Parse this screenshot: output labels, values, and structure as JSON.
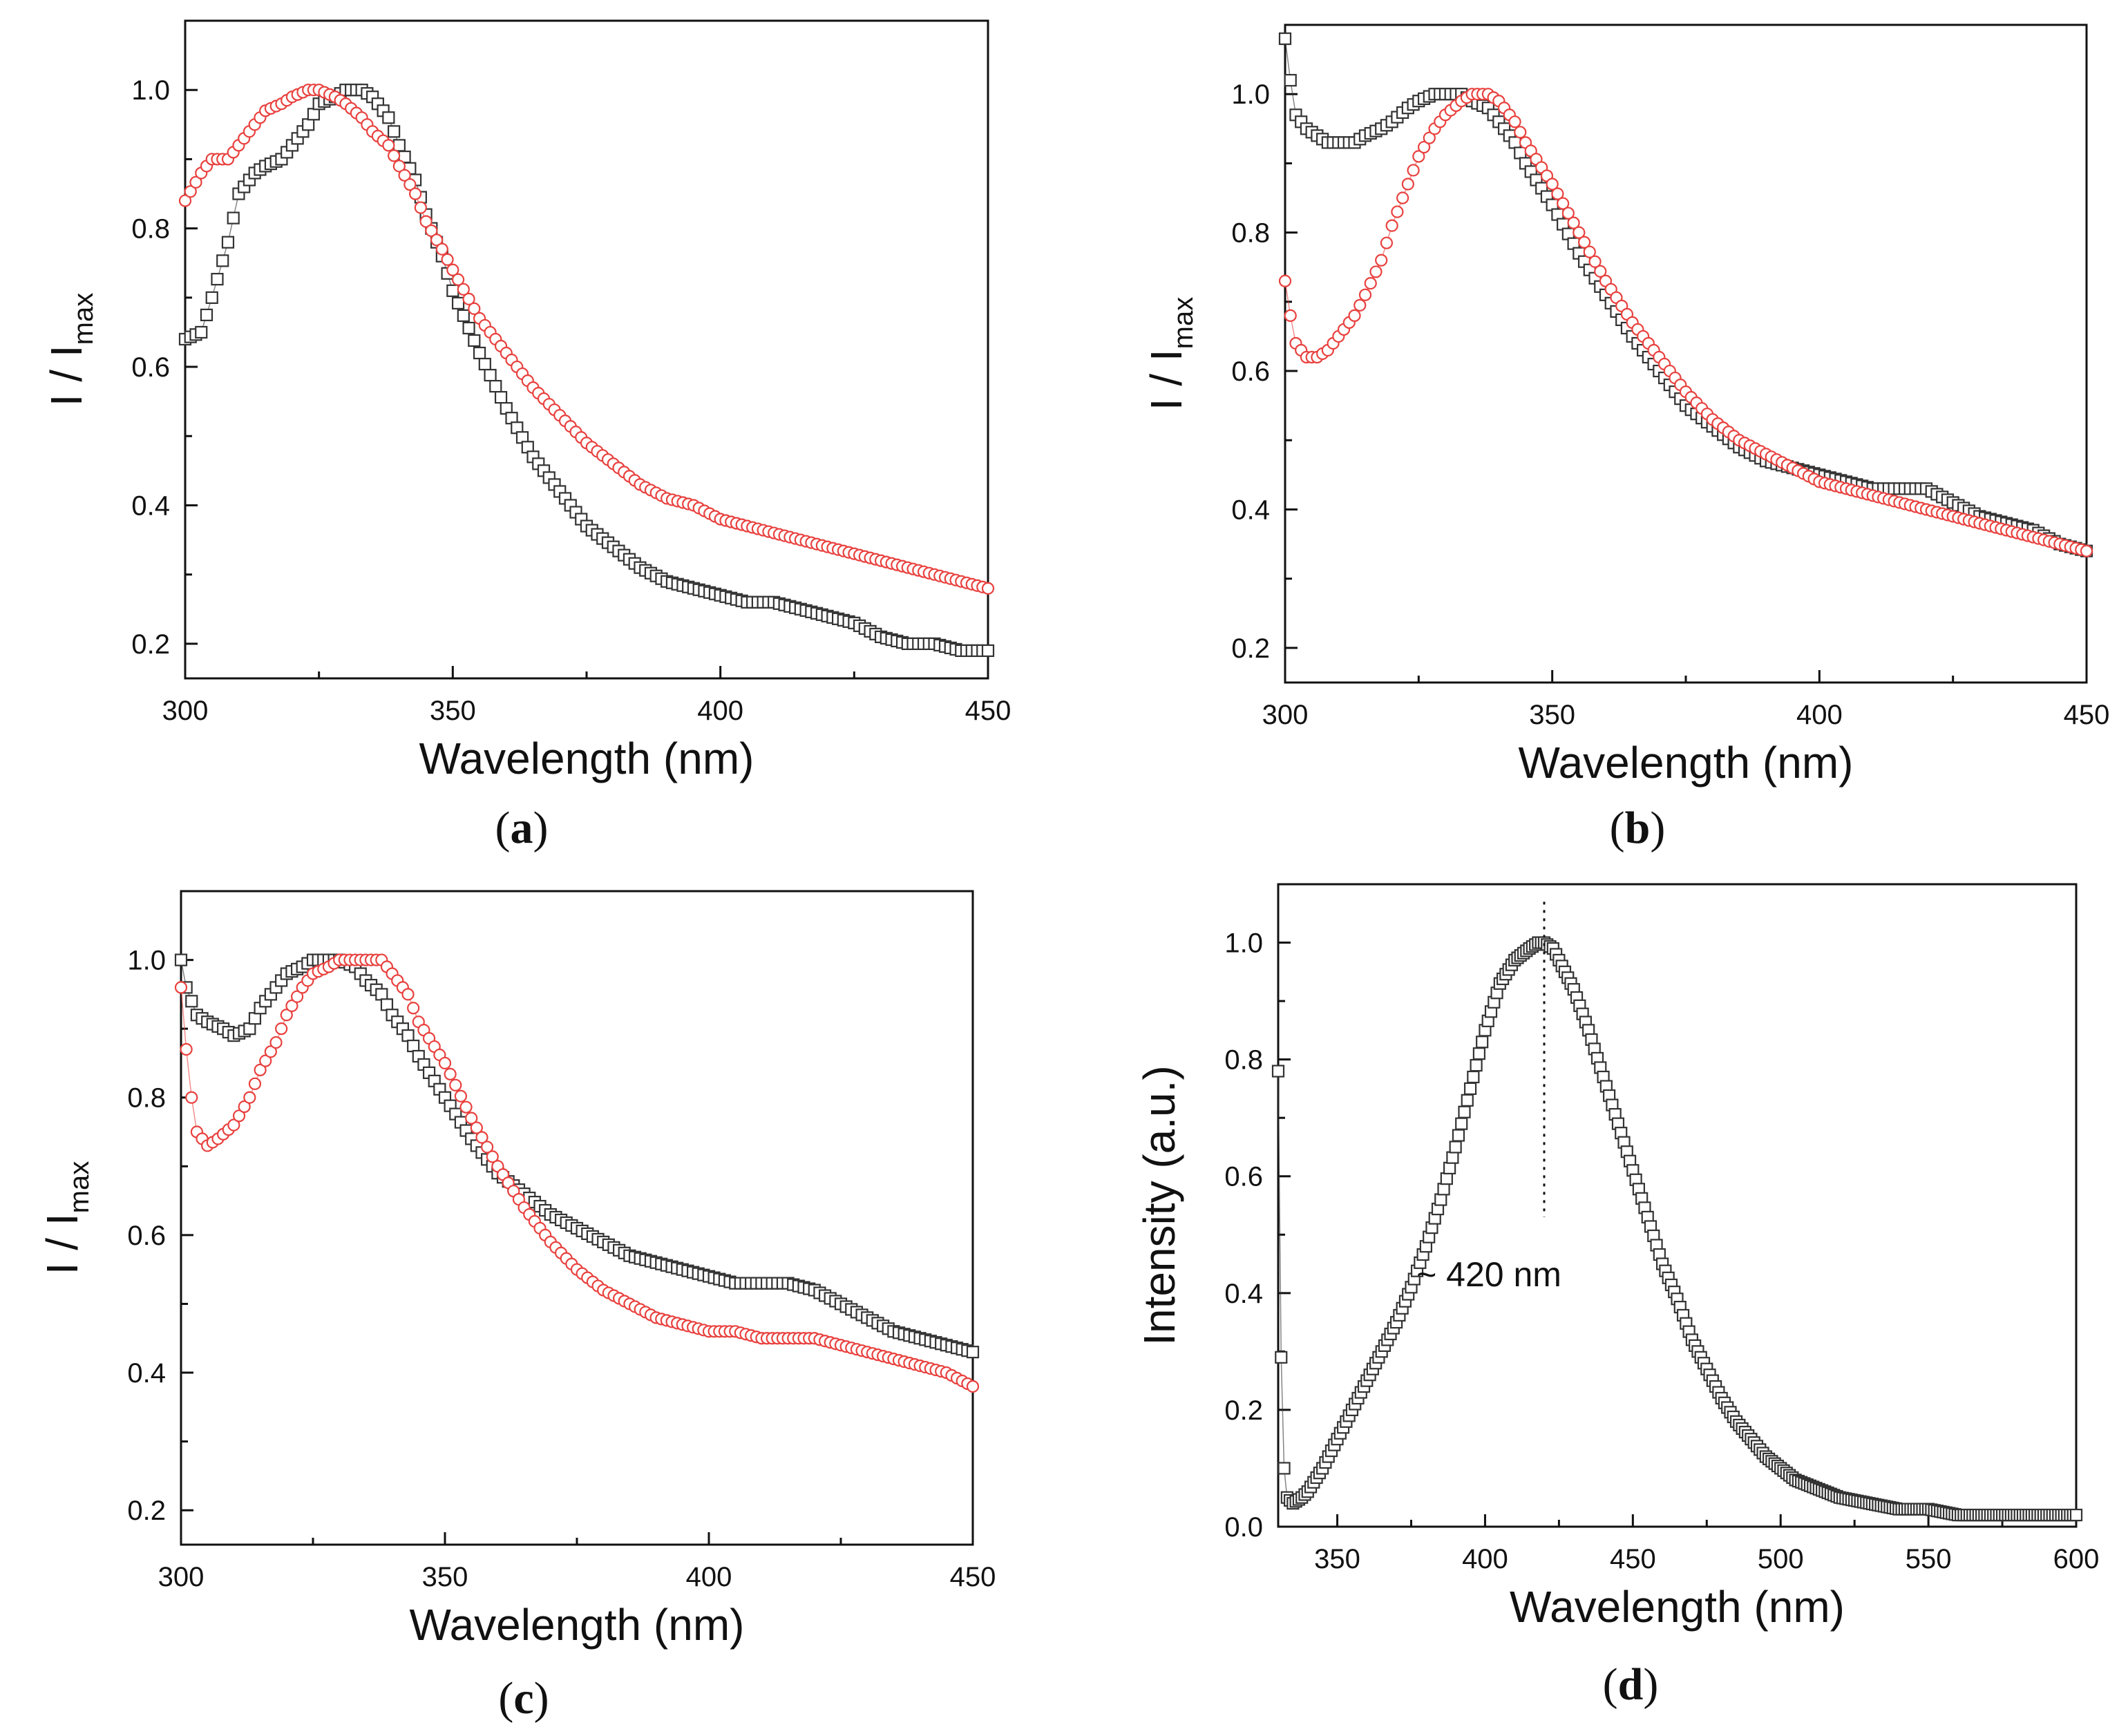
{
  "chart_data": [
    {
      "type": "scatter",
      "panel_label": "a",
      "xlabel": "Wavelength (nm)",
      "ylabel_main": "I / I",
      "ylabel_sub": "max",
      "xlim": [
        300,
        450
      ],
      "ylim": [
        0.15,
        1.1
      ],
      "xticks": [
        300,
        350,
        400,
        450
      ],
      "yticks": [
        0.2,
        0.4,
        0.6,
        0.8,
        1.0
      ],
      "xtick_labels": [
        "300",
        "350",
        "400",
        "450"
      ],
      "ytick_labels": [
        "0.2",
        "0.4",
        "0.6",
        "0.8",
        "1.0"
      ],
      "grid": false,
      "series": [
        {
          "name": "black squares",
          "marker": "square",
          "color": "#333333",
          "x": [
            300,
            303,
            305,
            308,
            310,
            313,
            315,
            318,
            320,
            323,
            325,
            328,
            330,
            333,
            335,
            338,
            340,
            343,
            345,
            348,
            350,
            355,
            360,
            365,
            370,
            375,
            380,
            385,
            390,
            395,
            400,
            405,
            410,
            415,
            420,
            425,
            430,
            435,
            440,
            445,
            450
          ],
          "y": [
            0.64,
            0.65,
            0.7,
            0.78,
            0.85,
            0.88,
            0.89,
            0.9,
            0.92,
            0.95,
            0.98,
            0.99,
            1.0,
            1.0,
            0.99,
            0.96,
            0.92,
            0.87,
            0.82,
            0.76,
            0.71,
            0.62,
            0.54,
            0.47,
            0.42,
            0.37,
            0.34,
            0.31,
            0.29,
            0.28,
            0.27,
            0.26,
            0.26,
            0.25,
            0.24,
            0.23,
            0.21,
            0.2,
            0.2,
            0.19,
            0.19
          ]
        },
        {
          "name": "red circles",
          "marker": "circle",
          "color": "#e8413e",
          "x": [
            300,
            303,
            305,
            308,
            310,
            313,
            315,
            318,
            320,
            323,
            325,
            328,
            330,
            333,
            335,
            338,
            340,
            343,
            345,
            348,
            350,
            355,
            360,
            365,
            370,
            375,
            380,
            385,
            390,
            395,
            400,
            405,
            410,
            415,
            420,
            425,
            430,
            435,
            440,
            445,
            450
          ],
          "y": [
            0.84,
            0.88,
            0.9,
            0.9,
            0.92,
            0.95,
            0.97,
            0.98,
            0.99,
            1.0,
            1.0,
            0.99,
            0.98,
            0.96,
            0.94,
            0.92,
            0.89,
            0.85,
            0.81,
            0.77,
            0.74,
            0.67,
            0.62,
            0.57,
            0.53,
            0.49,
            0.46,
            0.43,
            0.41,
            0.4,
            0.38,
            0.37,
            0.36,
            0.35,
            0.34,
            0.33,
            0.32,
            0.31,
            0.3,
            0.29,
            0.28
          ]
        }
      ]
    },
    {
      "type": "scatter",
      "panel_label": "b",
      "xlabel": "Wavelength (nm)",
      "ylabel_main": "I / I",
      "ylabel_sub": "max",
      "xlim": [
        300,
        450
      ],
      "ylim": [
        0.15,
        1.1
      ],
      "xticks": [
        300,
        350,
        400,
        450
      ],
      "yticks": [
        0.2,
        0.4,
        0.6,
        0.8,
        1.0
      ],
      "xtick_labels": [
        "300",
        "350",
        "400",
        "450"
      ],
      "ytick_labels": [
        "0.2",
        "0.4",
        "0.6",
        "0.8",
        "1.0"
      ],
      "grid": false,
      "series": [
        {
          "name": "black squares",
          "marker": "square",
          "color": "#333333",
          "x": [
            300,
            301,
            302,
            304,
            306,
            308,
            310,
            313,
            315,
            318,
            320,
            323,
            325,
            328,
            330,
            333,
            335,
            338,
            340,
            343,
            345,
            350,
            355,
            360,
            365,
            370,
            375,
            380,
            385,
            390,
            395,
            400,
            405,
            410,
            415,
            420,
            425,
            430,
            435,
            440,
            445,
            450
          ],
          "y": [
            1.08,
            1.02,
            0.97,
            0.95,
            0.94,
            0.93,
            0.93,
            0.93,
            0.94,
            0.95,
            0.96,
            0.98,
            0.99,
            1.0,
            1.0,
            1.0,
            0.99,
            0.98,
            0.96,
            0.93,
            0.9,
            0.84,
            0.77,
            0.71,
            0.65,
            0.6,
            0.55,
            0.52,
            0.49,
            0.47,
            0.46,
            0.45,
            0.44,
            0.43,
            0.43,
            0.43,
            0.41,
            0.39,
            0.38,
            0.37,
            0.35,
            0.34
          ]
        },
        {
          "name": "red circles",
          "marker": "circle",
          "color": "#e8413e",
          "x": [
            300,
            301,
            302,
            304,
            306,
            308,
            310,
            313,
            315,
            318,
            320,
            323,
            325,
            328,
            330,
            333,
            335,
            338,
            340,
            343,
            345,
            350,
            355,
            360,
            365,
            370,
            375,
            380,
            385,
            390,
            395,
            400,
            405,
            410,
            415,
            420,
            425,
            430,
            435,
            440,
            445,
            450
          ],
          "y": [
            0.73,
            0.68,
            0.64,
            0.62,
            0.62,
            0.63,
            0.65,
            0.68,
            0.71,
            0.76,
            0.81,
            0.87,
            0.91,
            0.95,
            0.97,
            0.99,
            1.0,
            1.0,
            0.99,
            0.96,
            0.93,
            0.87,
            0.8,
            0.73,
            0.67,
            0.62,
            0.57,
            0.53,
            0.5,
            0.48,
            0.46,
            0.44,
            0.43,
            0.42,
            0.41,
            0.4,
            0.39,
            0.38,
            0.37,
            0.36,
            0.35,
            0.34
          ]
        }
      ]
    },
    {
      "type": "scatter",
      "panel_label": "c",
      "xlabel": "Wavelength (nm)",
      "ylabel_main": "I / I",
      "ylabel_sub": "max",
      "xlim": [
        300,
        450
      ],
      "ylim": [
        0.15,
        1.1
      ],
      "xticks": [
        300,
        350,
        400,
        450
      ],
      "yticks": [
        0.2,
        0.4,
        0.6,
        0.8,
        1.0
      ],
      "xtick_labels": [
        "300",
        "350",
        "400",
        "450"
      ],
      "ytick_labels": [
        "0.2",
        "0.4",
        "0.6",
        "0.8",
        "1.0"
      ],
      "grid": false,
      "series": [
        {
          "name": "black squares",
          "marker": "square",
          "color": "#333333",
          "x": [
            300,
            301,
            303,
            305,
            308,
            310,
            313,
            315,
            318,
            320,
            323,
            325,
            328,
            330,
            333,
            335,
            338,
            340,
            343,
            345,
            350,
            355,
            360,
            365,
            370,
            375,
            380,
            385,
            390,
            395,
            400,
            405,
            410,
            415,
            420,
            425,
            430,
            435,
            440,
            445,
            450
          ],
          "y": [
            1.0,
            0.96,
            0.92,
            0.91,
            0.9,
            0.89,
            0.9,
            0.93,
            0.96,
            0.98,
            0.99,
            1.0,
            1.0,
            1.0,
            0.99,
            0.97,
            0.95,
            0.92,
            0.89,
            0.86,
            0.8,
            0.74,
            0.69,
            0.66,
            0.63,
            0.61,
            0.59,
            0.57,
            0.56,
            0.55,
            0.54,
            0.53,
            0.53,
            0.53,
            0.52,
            0.5,
            0.48,
            0.46,
            0.45,
            0.44,
            0.43
          ]
        },
        {
          "name": "red circles",
          "marker": "circle",
          "color": "#e8413e",
          "x": [
            300,
            301,
            302,
            303,
            305,
            307,
            310,
            313,
            315,
            318,
            320,
            323,
            325,
            328,
            330,
            333,
            335,
            338,
            340,
            343,
            345,
            350,
            355,
            360,
            365,
            370,
            375,
            380,
            385,
            390,
            395,
            400,
            405,
            410,
            415,
            420,
            425,
            430,
            435,
            440,
            445,
            450
          ],
          "y": [
            0.96,
            0.87,
            0.8,
            0.75,
            0.73,
            0.74,
            0.76,
            0.8,
            0.84,
            0.88,
            0.92,
            0.96,
            0.98,
            0.99,
            1.0,
            1.0,
            1.0,
            1.0,
            0.98,
            0.95,
            0.91,
            0.85,
            0.77,
            0.7,
            0.64,
            0.59,
            0.55,
            0.52,
            0.5,
            0.48,
            0.47,
            0.46,
            0.46,
            0.45,
            0.45,
            0.45,
            0.44,
            0.43,
            0.42,
            0.41,
            0.4,
            0.38
          ]
        }
      ]
    },
    {
      "type": "scatter",
      "panel_label": "d",
      "xlabel": "Wavelength (nm)",
      "ylabel_main": "Intensity (a.u.)",
      "ylabel_sub": "",
      "xlim": [
        330,
        600
      ],
      "ylim": [
        0,
        1.1
      ],
      "xticks": [
        350,
        400,
        450,
        500,
        550,
        600
      ],
      "yticks": [
        0.0,
        0.2,
        0.4,
        0.6,
        0.8,
        1.0
      ],
      "xtick_labels": [
        "350",
        "400",
        "450",
        "500",
        "550",
        "600"
      ],
      "ytick_labels": [
        "0.0",
        "0.2",
        "0.4",
        "0.6",
        "0.8",
        "1.0"
      ],
      "grid": false,
      "annotation": {
        "text": "~ 420 nm",
        "x": 420,
        "line_from_y": 0.53,
        "line_to_y": 1.07
      },
      "series": [
        {
          "name": "black squares",
          "marker": "square",
          "color": "#333333",
          "x": [
            330,
            331,
            332,
            333,
            335,
            338,
            340,
            345,
            350,
            355,
            360,
            365,
            370,
            375,
            380,
            385,
            390,
            395,
            400,
            405,
            410,
            415,
            418,
            420,
            423,
            425,
            430,
            435,
            440,
            445,
            450,
            455,
            460,
            465,
            470,
            475,
            480,
            485,
            490,
            495,
            500,
            505,
            510,
            515,
            520,
            530,
            540,
            550,
            560,
            570,
            580,
            590,
            600
          ],
          "y": [
            0.78,
            0.29,
            0.1,
            0.05,
            0.04,
            0.05,
            0.06,
            0.1,
            0.15,
            0.2,
            0.25,
            0.3,
            0.35,
            0.41,
            0.48,
            0.56,
            0.65,
            0.75,
            0.85,
            0.93,
            0.97,
            0.99,
            1.0,
            1.0,
            0.99,
            0.97,
            0.92,
            0.85,
            0.77,
            0.69,
            0.61,
            0.53,
            0.45,
            0.39,
            0.32,
            0.27,
            0.22,
            0.18,
            0.15,
            0.12,
            0.1,
            0.08,
            0.07,
            0.06,
            0.05,
            0.04,
            0.03,
            0.03,
            0.02,
            0.02,
            0.02,
            0.02,
            0.02
          ]
        }
      ]
    }
  ]
}
